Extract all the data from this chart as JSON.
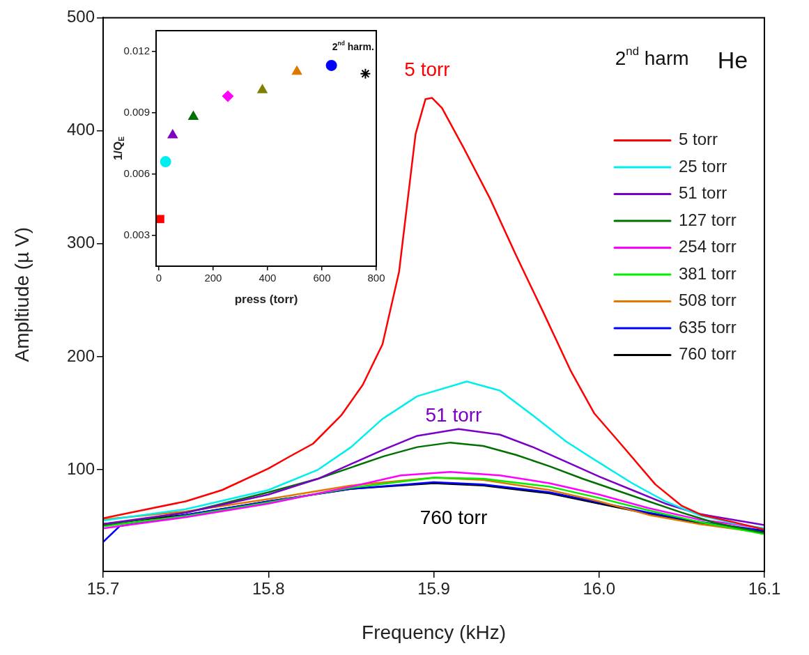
{
  "chart_data": [
    {
      "type": "line",
      "xlabel": "Frequency (kHz)",
      "ylabel": "Ampltiude (µ V)",
      "xlim": [
        15.7,
        16.1
      ],
      "ylim": [
        10,
        500
      ],
      "xticks": [
        15.7,
        15.8,
        15.9,
        {
          "value": 16,
          "label": "16.0"
        },
        16.1
      ],
      "yticks": [
        100,
        200,
        300,
        400,
        500
      ],
      "grid": false,
      "legend": "right",
      "annotations": [
        "2$^{nd}$ harm",
        "He",
        "5 torr",
        "51 torr",
        "760 torr"
      ],
      "series": [
        {
          "name": "5 torr",
          "color": "#ff0000",
          "x": [
            15.7,
            15.72,
            15.75,
            15.772,
            15.8,
            15.812,
            15.827,
            15.844,
            15.857,
            15.869,
            15.879,
            15.889,
            15.895,
            15.899,
            15.905,
            15.918,
            15.934,
            15.95,
            15.967,
            15.983,
            15.997,
            16.013,
            16.034,
            16.05,
            16.062,
            16.08,
            16.1
          ],
          "values": [
            57,
            63,
            72,
            82,
            101,
            111,
            123,
            148,
            175,
            211,
            275,
            397,
            428,
            429,
            420,
            385,
            340,
            289,
            237,
            187,
            150,
            123,
            87,
            68,
            60,
            54,
            47
          ]
        },
        {
          "name": "25 torr",
          "color": "#00eeee",
          "x": [
            15.7,
            15.75,
            15.8,
            15.83,
            15.85,
            15.869,
            15.89,
            15.92,
            15.94,
            15.96,
            15.98,
            15.996,
            16.02,
            16.04,
            16.06,
            16.08,
            16.1
          ],
          "values": [
            55,
            65,
            82,
            100,
            120,
            145,
            165,
            178,
            170,
            148,
            125,
            110,
            88,
            72,
            60,
            53,
            48
          ]
        },
        {
          "name": "51 torr",
          "color": "#7a00c8",
          "x": [
            15.7,
            15.75,
            15.8,
            15.83,
            15.85,
            15.87,
            15.89,
            15.915,
            15.94,
            15.96,
            15.98,
            16.0,
            16.02,
            16.04,
            16.06,
            16.08,
            16.1
          ],
          "values": [
            52,
            62,
            78,
            92,
            105,
            118,
            130,
            136,
            131,
            120,
            107,
            94,
            82,
            70,
            61,
            56,
            51
          ]
        },
        {
          "name": "127 torr",
          "color": "#007000",
          "x": [
            15.7,
            15.75,
            15.8,
            15.83,
            15.85,
            15.87,
            15.89,
            15.91,
            15.93,
            15.95,
            15.97,
            15.99,
            16.01,
            16.03,
            16.05,
            16.07,
            16.1
          ],
          "values": [
            51,
            62,
            80,
            92,
            102,
            112,
            120,
            124,
            121,
            113,
            103,
            92,
            82,
            72,
            62,
            53,
            44
          ]
        },
        {
          "name": "254 torr",
          "color": "#ff00ff",
          "x": [
            15.7,
            15.75,
            15.8,
            15.85,
            15.88,
            15.91,
            15.94,
            15.97,
            16.0,
            16.03,
            16.06,
            16.1
          ],
          "values": [
            48,
            58,
            70,
            85,
            95,
            98,
            95,
            88,
            78,
            66,
            56,
            48
          ]
        },
        {
          "name": "381 torr",
          "color": "#00ee00",
          "x": [
            15.7,
            15.75,
            15.8,
            15.85,
            15.9,
            15.93,
            15.97,
            16.0,
            16.03,
            16.06,
            16.1
          ],
          "values": [
            50,
            59,
            71,
            84,
            93,
            92,
            85,
            75,
            64,
            54,
            43
          ]
        },
        {
          "name": "508 torr",
          "color": "#e07800",
          "x": [
            15.7,
            15.75,
            15.8,
            15.85,
            15.9,
            15.93,
            15.97,
            16.0,
            16.03,
            16.06,
            16.1
          ],
          "values": [
            56,
            63,
            74,
            86,
            93,
            91,
            82,
            72,
            60,
            52,
            44
          ]
        },
        {
          "name": "635 torr",
          "color": "#0000ff",
          "x": [
            15.7,
            15.71,
            15.75,
            15.8,
            15.85,
            15.9,
            15.93,
            15.97,
            16.0,
            16.03,
            16.06,
            16.1
          ],
          "values": [
            36,
            50,
            60,
            72,
            83,
            89,
            87,
            80,
            71,
            62,
            54,
            46
          ]
        },
        {
          "name": "760 torr",
          "color": "#000000",
          "x": [
            15.7,
            15.75,
            15.8,
            15.85,
            15.9,
            15.93,
            15.97,
            16.0,
            16.03,
            16.06,
            16.1
          ],
          "values": [
            52,
            60,
            72,
            83,
            88,
            86,
            79,
            70,
            61,
            53,
            45
          ]
        }
      ]
    },
    {
      "type": "scatter",
      "xlabel": "press (torr)",
      "ylabel": "1/Q$_{E}$",
      "xlim": [
        -10,
        800
      ],
      "ylim": [
        0.0015,
        0.013
      ],
      "xticks": [
        0,
        200,
        400,
        600,
        800
      ],
      "yticks": [
        0.003,
        0.006,
        0.009,
        0.012
      ],
      "grid": false,
      "annotations": [
        "2$^{nd}$ harm."
      ],
      "series": [
        {
          "color": "#ff0000",
          "marker": "square",
          "x": [
            5
          ],
          "values": [
            0.0038
          ]
        },
        {
          "color": "#00eeee",
          "marker": "circle",
          "x": [
            25
          ],
          "values": [
            0.0066
          ]
        },
        {
          "color": "#8000c0",
          "marker": "triangle",
          "x": [
            51
          ],
          "values": [
            0.0079
          ]
        },
        {
          "color": "#007000",
          "marker": "triangle",
          "x": [
            127
          ],
          "values": [
            0.0088
          ]
        },
        {
          "color": "#ff00ff",
          "marker": "diamond",
          "x": [
            254
          ],
          "values": [
            0.0098
          ]
        },
        {
          "color": "#808000",
          "marker": "triangle",
          "x": [
            381
          ],
          "values": [
            0.0101
          ]
        },
        {
          "color": "#e07800",
          "marker": "triangle",
          "x": [
            508
          ],
          "values": [
            0.011
          ]
        },
        {
          "color": "#0000ff",
          "marker": "circle",
          "x": [
            635
          ],
          "values": [
            0.0113
          ]
        },
        {
          "color": "#000000",
          "marker": "cross",
          "x": [
            760
          ],
          "values": [
            0.0109
          ]
        }
      ]
    }
  ]
}
